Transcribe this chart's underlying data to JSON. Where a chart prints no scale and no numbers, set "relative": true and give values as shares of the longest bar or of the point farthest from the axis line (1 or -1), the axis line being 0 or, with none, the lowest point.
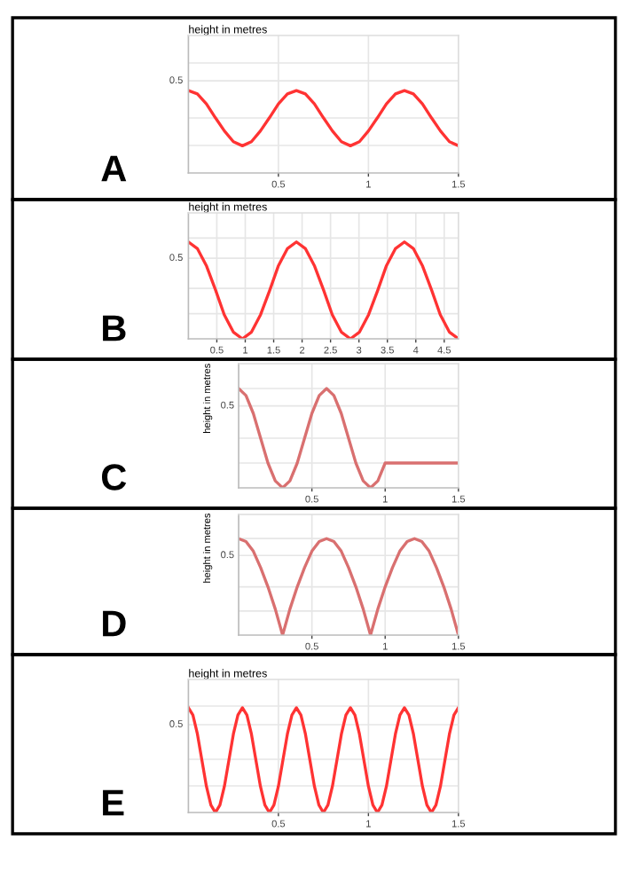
{
  "chart_data": [
    {
      "type": "line",
      "relative": true,
      "ylabel": "height in metres",
      "annotations": [
        "A",
        "0.5"
      ],
      "xlim": [
        0,
        1.5
      ],
      "xticks": [
        0.5,
        1,
        1.5
      ],
      "grid": true,
      "x": [
        0,
        0.05,
        0.1,
        0.15,
        0.2,
        0.25,
        0.3,
        0.35,
        0.4,
        0.45,
        0.5,
        0.55,
        0.6,
        0.65,
        0.7,
        0.75,
        0.8,
        0.85,
        0.9,
        0.95,
        1.0,
        1.05,
        1.1,
        1.15,
        1.2,
        1.25,
        1.3,
        1.35,
        1.4,
        1.45,
        1.5
      ],
      "series": [
        {
          "color": "#ff3333",
          "values": [
            1,
            0.96,
            0.84,
            0.67,
            0.51,
            0.38,
            0.33,
            0.38,
            0.51,
            0.67,
            0.84,
            0.96,
            1,
            0.96,
            0.84,
            0.67,
            0.51,
            0.38,
            0.33,
            0.38,
            0.51,
            0.67,
            0.84,
            0.96,
            1,
            0.96,
            0.84,
            0.67,
            0.51,
            0.38,
            0.33
          ]
        }
      ]
    },
    {
      "type": "line",
      "relative": true,
      "ylabel": "height in metres",
      "annotations": [
        "B",
        "0.5"
      ],
      "xlim": [
        0,
        4.75
      ],
      "xticks": [
        0.5,
        1,
        1.5,
        2,
        2.5,
        3,
        3.5,
        4,
        4.5
      ],
      "grid": true,
      "x": [
        0,
        0.16,
        0.32,
        0.48,
        0.63,
        0.79,
        0.95,
        1.11,
        1.27,
        1.43,
        1.58,
        1.74,
        1.9,
        2.06,
        2.22,
        2.38,
        2.53,
        2.69,
        2.85,
        3.01,
        3.17,
        3.33,
        3.48,
        3.64,
        3.8,
        3.96,
        4.12,
        4.28,
        4.43,
        4.59,
        4.75
      ],
      "series": [
        {
          "color": "#ff3333",
          "values": [
            1,
            0.93,
            0.75,
            0.5,
            0.25,
            0.07,
            0,
            0.07,
            0.25,
            0.5,
            0.75,
            0.93,
            1,
            0.93,
            0.75,
            0.5,
            0.25,
            0.07,
            0,
            0.07,
            0.25,
            0.5,
            0.75,
            0.93,
            1,
            0.93,
            0.75,
            0.5,
            0.25,
            0.07,
            0
          ]
        }
      ]
    },
    {
      "type": "line",
      "relative": true,
      "ylabel": "height in metres",
      "annotations": [
        "C",
        "0.5"
      ],
      "xlim": [
        0,
        1.5
      ],
      "xticks": [
        0.5,
        1,
        1.5
      ],
      "grid": true,
      "x": [
        0,
        0.05,
        0.1,
        0.15,
        0.2,
        0.25,
        0.3,
        0.35,
        0.4,
        0.45,
        0.5,
        0.55,
        0.6,
        0.65,
        0.7,
        0.75,
        0.8,
        0.85,
        0.9,
        0.95,
        1.0,
        1.5
      ],
      "series": [
        {
          "color": "#d97070",
          "values": [
            1,
            0.93,
            0.75,
            0.5,
            0.25,
            0.07,
            0,
            0.07,
            0.25,
            0.5,
            0.75,
            0.93,
            1,
            0.93,
            0.75,
            0.5,
            0.25,
            0.07,
            0,
            0.07,
            0.25,
            0.25
          ]
        }
      ]
    },
    {
      "type": "line",
      "relative": true,
      "ylabel": "height in metres",
      "annotations": [
        "D",
        "0.5"
      ],
      "xlim": [
        0,
        1.5
      ],
      "xticks": [
        0.5,
        1,
        1.5
      ],
      "grid": true,
      "x": [
        0,
        0.05,
        0.1,
        0.15,
        0.2,
        0.25,
        0.3,
        0.35,
        0.4,
        0.45,
        0.5,
        0.55,
        0.6,
        0.65,
        0.7,
        0.75,
        0.8,
        0.85,
        0.9,
        0.95,
        1.0,
        1.05,
        1.1,
        1.15,
        1.2,
        1.25,
        1.3,
        1.35,
        1.4,
        1.45,
        1.5
      ],
      "series": [
        {
          "color": "#d97070",
          "values": [
            1,
            0.97,
            0.87,
            0.7,
            0.5,
            0.27,
            0,
            0.27,
            0.5,
            0.7,
            0.87,
            0.97,
            1,
            0.97,
            0.87,
            0.7,
            0.5,
            0.27,
            0,
            0.27,
            0.5,
            0.7,
            0.87,
            0.97,
            1,
            0.97,
            0.87,
            0.7,
            0.5,
            0.27,
            0
          ]
        }
      ]
    },
    {
      "type": "line",
      "relative": true,
      "ylabel": "height in metres",
      "annotations": [
        "E",
        "0.5"
      ],
      "xlim": [
        0,
        1.5
      ],
      "xticks": [
        0.5,
        1,
        1.5
      ],
      "grid": true,
      "x": [
        0,
        0.025,
        0.05,
        0.075,
        0.1,
        0.125,
        0.15,
        0.175,
        0.2,
        0.225,
        0.25,
        0.275,
        0.3,
        0.325,
        0.35,
        0.375,
        0.4,
        0.425,
        0.45,
        0.475,
        0.5,
        0.525,
        0.55,
        0.575,
        0.6,
        0.625,
        0.65,
        0.675,
        0.7,
        0.725,
        0.75,
        0.775,
        0.8,
        0.825,
        0.85,
        0.875,
        0.9,
        0.925,
        0.95,
        0.975,
        1.0,
        1.025,
        1.05,
        1.075,
        1.1,
        1.125,
        1.15,
        1.175,
        1.2,
        1.225,
        1.25,
        1.275,
        1.3,
        1.325,
        1.35,
        1.375,
        1.4,
        1.425,
        1.45,
        1.475,
        1.5
      ],
      "series": [
        {
          "color": "#ff3333",
          "values": [
            1,
            0.93,
            0.75,
            0.5,
            0.25,
            0.07,
            0,
            0.07,
            0.25,
            0.5,
            0.75,
            0.93,
            1,
            0.93,
            0.75,
            0.5,
            0.25,
            0.07,
            0,
            0.07,
            0.25,
            0.5,
            0.75,
            0.93,
            1,
            0.93,
            0.75,
            0.5,
            0.25,
            0.07,
            0,
            0.07,
            0.25,
            0.5,
            0.75,
            0.93,
            1,
            0.93,
            0.75,
            0.5,
            0.25,
            0.07,
            0,
            0.07,
            0.25,
            0.5,
            0.75,
            0.93,
            1,
            0.93,
            0.75,
            0.5,
            0.25,
            0.07,
            0,
            0.07,
            0.25,
            0.5,
            0.75,
            0.93,
            1
          ]
        }
      ]
    }
  ]
}
